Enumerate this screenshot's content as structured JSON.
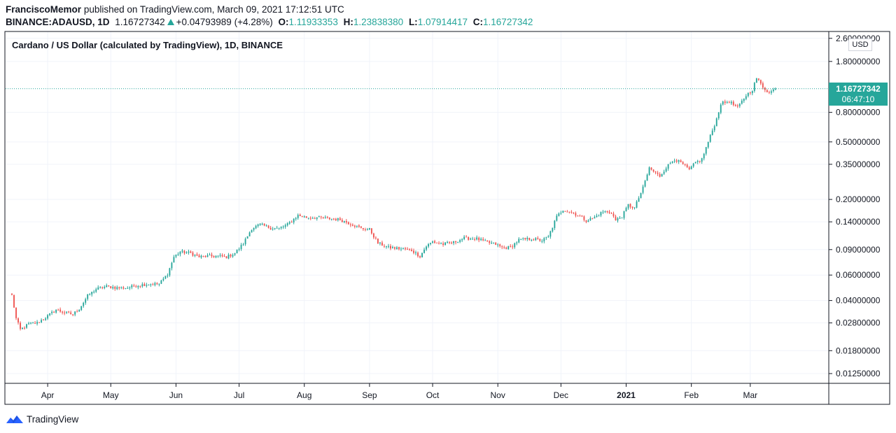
{
  "header": {
    "author": "FranciscoMemor",
    "published_text": "published on TradingView.com, March 09, 2021 17:12:51 UTC",
    "symbol": "BINANCE:ADAUSD, 1D",
    "last": "1.16727342",
    "change": "+0.04793989 (+4.28%)",
    "o_label": "O:",
    "o": "1.11933353",
    "h_label": "H:",
    "h": "1.23838380",
    "l_label": "L:",
    "l": "1.07914417",
    "c_label": "C:",
    "c": "1.16727342"
  },
  "colors": {
    "up": "#26a69a",
    "down": "#ef5350",
    "grid": "#f0f3fa",
    "border": "#131722",
    "price_line": "#26a69a"
  },
  "chart_data": {
    "type": "candlestick",
    "title": "Cardano / US Dollar (calculated by TradingView), 1D, BINANCE",
    "y_scale": "log",
    "currency": "USD",
    "ylim": [
      0.0107,
      2.9
    ],
    "y_ticks": [
      {
        "value": 2.6,
        "label": "2.60000000"
      },
      {
        "value": 1.8,
        "label": "1.80000000"
      },
      {
        "value": 0.8,
        "label": "0.80000000"
      },
      {
        "value": 0.5,
        "label": "0.50000000"
      },
      {
        "value": 0.35,
        "label": "0.35000000"
      },
      {
        "value": 0.2,
        "label": "0.20000000"
      },
      {
        "value": 0.14,
        "label": "0.14000000"
      },
      {
        "value": 0.09,
        "label": "0.09000000"
      },
      {
        "value": 0.06,
        "label": "0.06000000"
      },
      {
        "value": 0.04,
        "label": "0.04000000"
      },
      {
        "value": 0.028,
        "label": "0.02800000"
      },
      {
        "value": 0.018,
        "label": "0.01800000"
      },
      {
        "value": 0.0125,
        "label": "0.01250000"
      }
    ],
    "x_labels": [
      {
        "label": "Apr",
        "day": 17,
        "bold": false
      },
      {
        "label": "May",
        "day": 47,
        "bold": false
      },
      {
        "label": "Jun",
        "day": 78,
        "bold": false
      },
      {
        "label": "Jul",
        "day": 108,
        "bold": false
      },
      {
        "label": "Aug",
        "day": 139,
        "bold": false
      },
      {
        "label": "Sep",
        "day": 170,
        "bold": false
      },
      {
        "label": "Oct",
        "day": 200,
        "bold": false
      },
      {
        "label": "Nov",
        "day": 231,
        "bold": false
      },
      {
        "label": "Dec",
        "day": 261,
        "bold": false
      },
      {
        "label": "2021",
        "day": 292,
        "bold": true
      },
      {
        "label": "Feb",
        "day": 323,
        "bold": false
      },
      {
        "label": "Mar",
        "day": 351,
        "bold": false
      }
    ],
    "first_day": "2020-03-15",
    "last_day": "2021-03-09",
    "x_day_range": [
      -3,
      388
    ],
    "anchors": [
      [
        0,
        0.0435
      ],
      [
        2,
        0.03
      ],
      [
        4,
        0.0252
      ],
      [
        8,
        0.0275
      ],
      [
        12,
        0.028
      ],
      [
        16,
        0.0305
      ],
      [
        21,
        0.0345
      ],
      [
        25,
        0.033
      ],
      [
        29,
        0.0322
      ],
      [
        32,
        0.035
      ],
      [
        36,
        0.043
      ],
      [
        40,
        0.048
      ],
      [
        45,
        0.05
      ],
      [
        50,
        0.049
      ],
      [
        55,
        0.049
      ],
      [
        60,
        0.051
      ],
      [
        65,
        0.052
      ],
      [
        70,
        0.052
      ],
      [
        74,
        0.061
      ],
      [
        77,
        0.08
      ],
      [
        80,
        0.087
      ],
      [
        85,
        0.085
      ],
      [
        89,
        0.08
      ],
      [
        93,
        0.081
      ],
      [
        99,
        0.081
      ],
      [
        102,
        0.08
      ],
      [
        106,
        0.085
      ],
      [
        110,
        0.099
      ],
      [
        114,
        0.126
      ],
      [
        118,
        0.134
      ],
      [
        123,
        0.127
      ],
      [
        127,
        0.126
      ],
      [
        131,
        0.134
      ],
      [
        136,
        0.155
      ],
      [
        140,
        0.15
      ],
      [
        145,
        0.15
      ],
      [
        150,
        0.148
      ],
      [
        156,
        0.145
      ],
      [
        162,
        0.134
      ],
      [
        166,
        0.126
      ],
      [
        170,
        0.124
      ],
      [
        174,
        0.1
      ],
      [
        179,
        0.093
      ],
      [
        186,
        0.091
      ],
      [
        190,
        0.089
      ],
      [
        194,
        0.081
      ],
      [
        197,
        0.095
      ],
      [
        200,
        0.102
      ],
      [
        205,
        0.098
      ],
      [
        210,
        0.101
      ],
      [
        215,
        0.108
      ],
      [
        221,
        0.107
      ],
      [
        225,
        0.102
      ],
      [
        230,
        0.098
      ],
      [
        233,
        0.093
      ],
      [
        237,
        0.093
      ],
      [
        241,
        0.105
      ],
      [
        247,
        0.107
      ],
      [
        252,
        0.104
      ],
      [
        255,
        0.11
      ],
      [
        259,
        0.152
      ],
      [
        262,
        0.17
      ],
      [
        266,
        0.163
      ],
      [
        270,
        0.153
      ],
      [
        273,
        0.143
      ],
      [
        277,
        0.15
      ],
      [
        281,
        0.165
      ],
      [
        285,
        0.162
      ],
      [
        287,
        0.143
      ],
      [
        290,
        0.153
      ],
      [
        293,
        0.183
      ],
      [
        296,
        0.175
      ],
      [
        300,
        0.24
      ],
      [
        303,
        0.33
      ],
      [
        305,
        0.312
      ],
      [
        308,
        0.29
      ],
      [
        311,
        0.333
      ],
      [
        315,
        0.38
      ],
      [
        319,
        0.35
      ],
      [
        322,
        0.32
      ],
      [
        325,
        0.36
      ],
      [
        328,
        0.38
      ],
      [
        331,
        0.5
      ],
      [
        335,
        0.72
      ],
      [
        337,
        0.92
      ],
      [
        341,
        0.95
      ],
      [
        345,
        0.86
      ],
      [
        349,
        1.05
      ],
      [
        352,
        1.15
      ],
      [
        354,
        1.38
      ],
      [
        357,
        1.2
      ],
      [
        360,
        1.09
      ],
      [
        363,
        1.167
      ]
    ],
    "last_price": 1.16727342,
    "last_price_label": "1.16727342",
    "countdown": "06:47:10",
    "grid": true,
    "legend": "none"
  },
  "footer": {
    "brand": "TradingView",
    "logo_icon": "tradingview-cloud-icon"
  }
}
